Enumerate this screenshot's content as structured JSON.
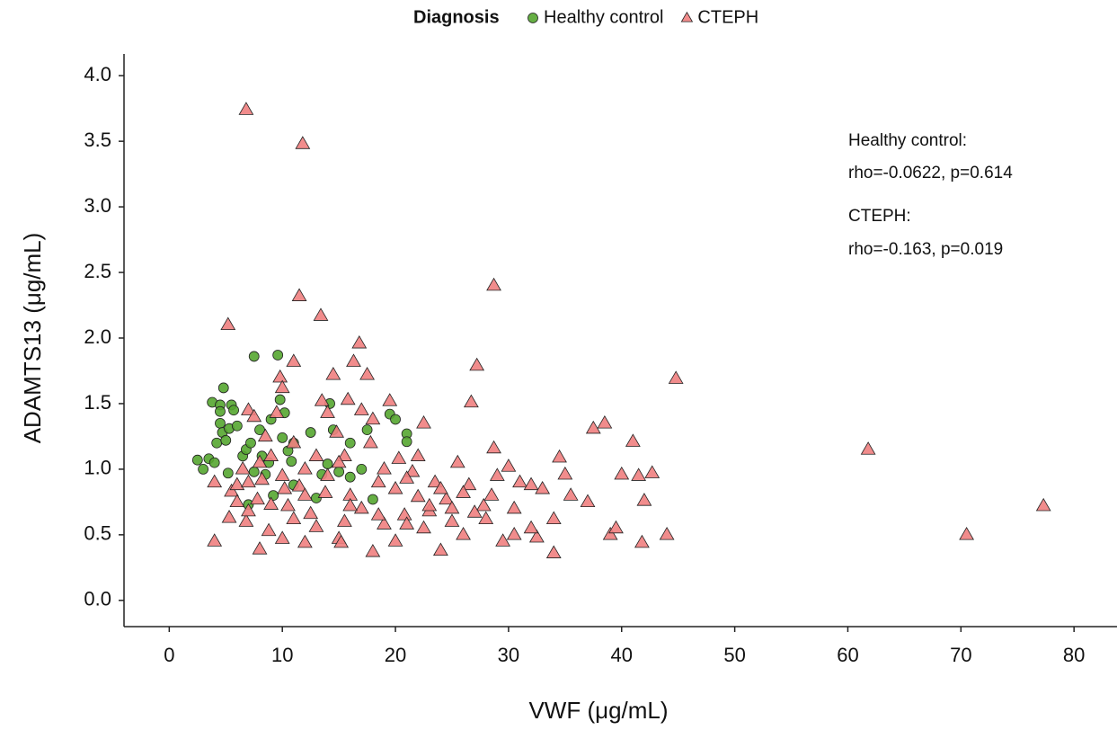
{
  "chart_data": {
    "type": "scatter",
    "legend_title": "Diagnosis",
    "x_label": "VWF (μg/mL)",
    "y_label": "ADAMTS13 (μg/mL)",
    "annotations": [
      "Healthy control:",
      "rho=-0.0622, p=0.614",
      "CTEPH:",
      "rho=-0.163, p=0.019"
    ],
    "xlim": [
      -4,
      83.8
    ],
    "ylim": [
      -0.2,
      4.2
    ],
    "xticks": [
      0,
      10,
      20,
      30,
      40,
      50,
      60,
      70,
      80
    ],
    "yticks": [
      {
        "value": 0,
        "label": "0.0"
      },
      {
        "value": 0.5,
        "label": "0.5"
      },
      {
        "value": 1,
        "label": "1.0"
      },
      {
        "value": 1.5,
        "label": "1.5"
      },
      {
        "value": 2,
        "label": "2.0"
      },
      {
        "value": 2.5,
        "label": "2.5"
      },
      {
        "value": 3,
        "label": "3.0"
      },
      {
        "value": 3.5,
        "label": "3.5"
      },
      {
        "value": 4,
        "label": "4.0"
      }
    ],
    "legend_position": "top",
    "series": [
      {
        "name": "Healthy control",
        "color": "#55a630",
        "shape": "circle",
        "x": [
          2.5,
          3,
          3.5,
          3.8,
          4,
          4.2,
          4.5,
          4.5,
          4.5,
          4.7,
          4.8,
          5,
          5.2,
          5.3,
          5.5,
          5.7,
          6,
          6.5,
          6.8,
          7,
          7.2,
          7.5,
          7.5,
          8,
          8.2,
          8.5,
          8.8,
          9,
          9.2,
          9.6,
          9.8,
          10,
          10.2,
          10.5,
          10.8,
          11,
          12.5,
          13.5,
          14,
          14.2,
          14.5,
          15,
          16,
          17,
          17.5,
          18,
          19.5,
          20,
          21,
          21,
          16,
          13,
          11
        ],
        "values": [
          1.07,
          1.0,
          1.08,
          1.51,
          1.05,
          1.2,
          1.49,
          1.44,
          1.35,
          1.28,
          1.62,
          1.22,
          0.97,
          1.31,
          1.49,
          1.45,
          1.33,
          1.1,
          1.15,
          0.73,
          1.2,
          1.86,
          0.98,
          1.3,
          1.1,
          0.96,
          1.05,
          1.38,
          0.8,
          1.87,
          1.53,
          1.24,
          1.43,
          1.14,
          1.06,
          1.2,
          1.28,
          0.96,
          1.04,
          1.5,
          1.3,
          0.98,
          1.2,
          1.0,
          1.3,
          0.77,
          1.42,
          1.38,
          1.27,
          1.21,
          0.94,
          0.78,
          0.88
        ]
      },
      {
        "name": "CTEPH",
        "color": "#f08080",
        "shape": "triangle",
        "x": [
          4,
          4,
          5.2,
          5.3,
          5.5,
          6,
          6,
          6.5,
          6.8,
          6.8,
          7,
          7,
          7.5,
          7.8,
          8,
          8.2,
          8.5,
          8.8,
          9,
          9.5,
          9.8,
          10,
          10,
          10.2,
          10.5,
          11,
          11,
          11.5,
          11.5,
          11.8,
          12,
          12.5,
          13,
          13.4,
          13.5,
          13.8,
          14,
          14.5,
          14.8,
          15,
          15.2,
          15.5,
          15.8,
          16,
          16.3,
          16.8,
          17,
          17.5,
          17.8,
          18,
          18.5,
          19,
          19.5,
          20,
          20.3,
          20.8,
          21,
          21.5,
          22,
          22.5,
          23,
          23.5,
          24,
          24.5,
          25,
          25.5,
          26,
          26.5,
          26.7,
          27.2,
          27.8,
          28.5,
          28.7,
          28.7,
          29,
          29.5,
          30,
          30.5,
          31,
          32,
          32.5,
          33,
          34,
          34,
          34.5,
          35,
          35.5,
          37,
          37.5,
          38.5,
          39,
          39.5,
          40,
          41,
          41.5,
          41.8,
          42,
          42.7,
          44,
          44.8,
          61.8,
          70.5,
          77.3,
          12,
          13,
          14,
          15,
          16,
          17,
          18,
          19,
          20,
          21,
          22,
          23,
          24,
          25,
          26,
          27,
          28,
          9,
          10,
          11,
          12,
          7,
          8,
          15.5,
          18.5,
          22.5,
          30.5,
          32
        ],
        "values": [
          0.45,
          0.9,
          2.1,
          0.63,
          0.83,
          0.88,
          0.75,
          1.0,
          3.74,
          0.6,
          1.45,
          0.68,
          1.4,
          0.77,
          0.39,
          0.92,
          1.25,
          0.53,
          0.73,
          1.43,
          1.7,
          1.62,
          0.47,
          0.85,
          0.72,
          1.82,
          0.62,
          2.32,
          0.87,
          3.48,
          0.44,
          0.66,
          0.56,
          2.17,
          1.52,
          0.82,
          1.43,
          1.72,
          1.28,
          0.47,
          0.44,
          1.1,
          1.53,
          0.8,
          1.82,
          1.96,
          0.7,
          1.72,
          1.2,
          0.37,
          0.9,
          0.58,
          1.52,
          0.45,
          1.08,
          0.65,
          0.58,
          0.98,
          0.79,
          1.35,
          0.68,
          0.9,
          0.38,
          0.77,
          0.7,
          1.05,
          0.5,
          0.88,
          1.51,
          1.79,
          0.72,
          0.8,
          2.4,
          1.16,
          0.95,
          0.45,
          1.02,
          0.7,
          0.9,
          0.88,
          0.48,
          0.85,
          0.62,
          0.36,
          1.09,
          0.96,
          0.8,
          0.75,
          1.31,
          1.35,
          0.5,
          0.55,
          0.96,
          1.21,
          0.95,
          0.44,
          0.76,
          0.97,
          0.5,
          1.69,
          1.15,
          0.5,
          0.72,
          1.0,
          1.1,
          0.95,
          1.05,
          0.72,
          1.45,
          1.38,
          1.0,
          0.85,
          0.93,
          1.1,
          0.72,
          0.85,
          0.6,
          0.82,
          0.67,
          0.62,
          1.1,
          0.95,
          1.2,
          0.8,
          0.9,
          1.05,
          0.6,
          0.65,
          0.55,
          0.5,
          0.55
        ]
      }
    ]
  }
}
